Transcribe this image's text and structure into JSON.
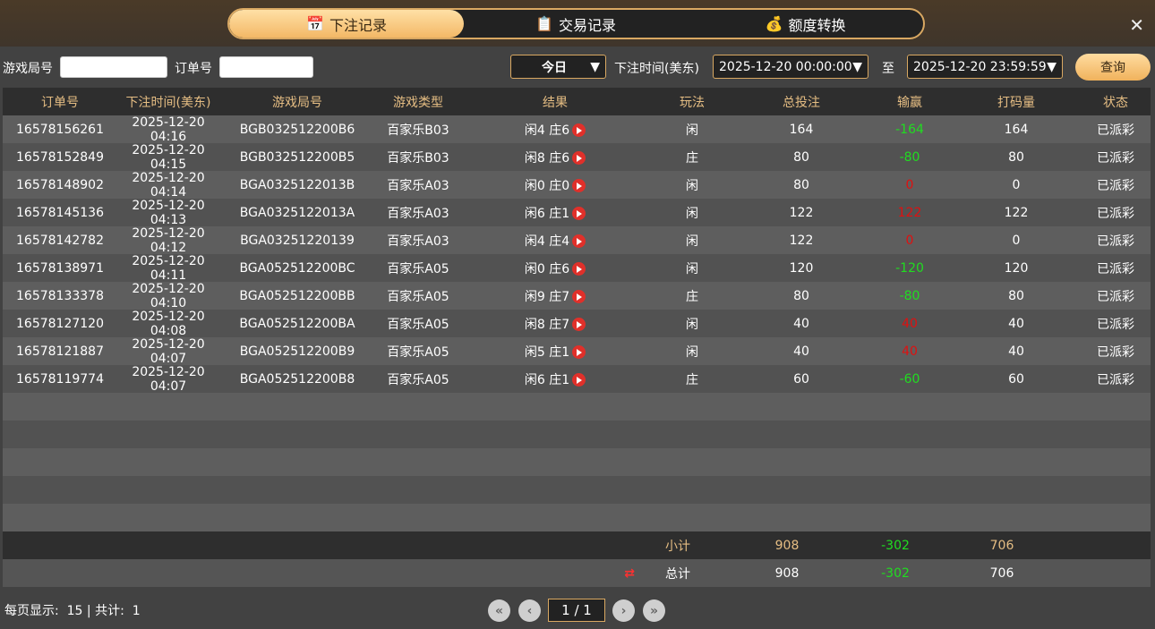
{
  "tabs": [
    {
      "label": "下注记录",
      "icon": "calendar-icon"
    },
    {
      "label": "交易记录",
      "icon": "clipboard-icon"
    },
    {
      "label": "额度转换",
      "icon": "coins-icon"
    }
  ],
  "filter": {
    "round_label": "游戏局号",
    "round_value": "",
    "order_label": "订单号",
    "order_value": "",
    "range": "今日",
    "time_label": "下注时间(美东)",
    "start": "2025-12-20 00:00:00",
    "to": "至",
    "end": "2025-12-20 23:59:59",
    "query": "查询"
  },
  "columns": [
    "订单号",
    "下注时间(美东)",
    "游戏局号",
    "游戏类型",
    "结果",
    "玩法",
    "总投注",
    "输赢",
    "打码量",
    "状态"
  ],
  "rows": [
    [
      "16578156261",
      "2025-12-20 04:16",
      "BGB032512200B6",
      "百家乐B03",
      "闲4 庄6",
      "闲",
      "164",
      "-164",
      "164",
      "已派彩"
    ],
    [
      "16578152849",
      "2025-12-20 04:15",
      "BGB032512200B5",
      "百家乐B03",
      "闲8 庄6",
      "庄",
      "80",
      "-80",
      "80",
      "已派彩"
    ],
    [
      "16578148902",
      "2025-12-20 04:14",
      "BGA0325122013B",
      "百家乐A03",
      "闲0 庄0",
      "闲",
      "80",
      "0",
      "0",
      "已派彩"
    ],
    [
      "16578145136",
      "2025-12-20 04:13",
      "BGA0325122013A",
      "百家乐A03",
      "闲6 庄1",
      "闲",
      "122",
      "122",
      "122",
      "已派彩"
    ],
    [
      "16578142782",
      "2025-12-20 04:12",
      "BGA03251220139",
      "百家乐A03",
      "闲4 庄4",
      "闲",
      "122",
      "0",
      "0",
      "已派彩"
    ],
    [
      "16578138971",
      "2025-12-20 04:11",
      "BGA052512200BC",
      "百家乐A05",
      "闲0 庄6",
      "闲",
      "120",
      "-120",
      "120",
      "已派彩"
    ],
    [
      "16578133378",
      "2025-12-20 04:10",
      "BGA052512200BB",
      "百家乐A05",
      "闲9 庄7",
      "庄",
      "80",
      "-80",
      "80",
      "已派彩"
    ],
    [
      "16578127120",
      "2025-12-20 04:08",
      "BGA052512200BA",
      "百家乐A05",
      "闲8 庄7",
      "闲",
      "40",
      "40",
      "40",
      "已派彩"
    ],
    [
      "16578121887",
      "2025-12-20 04:07",
      "BGA052512200B9",
      "百家乐A05",
      "闲5 庄1",
      "闲",
      "40",
      "40",
      "40",
      "已派彩"
    ],
    [
      "16578119774",
      "2025-12-20 04:07",
      "BGA052512200B8",
      "百家乐A05",
      "闲6 庄1",
      "庄",
      "60",
      "-60",
      "60",
      "已派彩"
    ]
  ],
  "subtotal": {
    "label": "小计",
    "bet": "908",
    "win": "-302",
    "turnover": "706"
  },
  "total": {
    "label": "总计",
    "bet": "908",
    "win": "-302",
    "turnover": "706"
  },
  "footer": {
    "per_page_label": "每页显示:",
    "per_page": "15",
    "sep": "|",
    "count_label": "共计:",
    "count": "1"
  },
  "pager": {
    "page": "1 / 1"
  },
  "colors": {
    "accent": "#d9a862",
    "win": "#20dd20",
    "loss": "#e01010"
  }
}
